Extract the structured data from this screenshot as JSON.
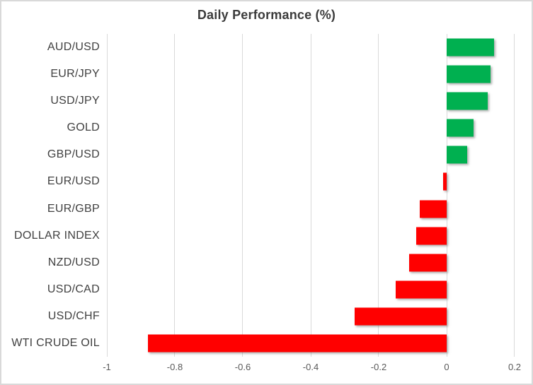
{
  "chart_data": {
    "type": "bar",
    "orientation": "horizontal",
    "title": "Daily Performance (%)",
    "categories": [
      "AUD/USD",
      "EUR/JPY",
      "USD/JPY",
      "GOLD",
      "GBP/USD",
      "EUR/USD",
      "EUR/GBP",
      "DOLLAR INDEX",
      "NZD/USD",
      "USD/CAD",
      "USD/CHF",
      "WTI CRUDE OIL"
    ],
    "values": [
      0.14,
      0.13,
      0.12,
      0.08,
      0.06,
      -0.01,
      -0.08,
      -0.09,
      -0.11,
      -0.15,
      -0.27,
      -0.88
    ],
    "xlim": [
      -1,
      0.2
    ],
    "x_ticks": [
      -1,
      -0.8,
      -0.6,
      -0.4,
      -0.2,
      0,
      0.2
    ],
    "x_tick_labels": [
      "-1",
      "-0.8",
      "-0.6",
      "-0.4",
      "-0.2",
      "0",
      "0.2"
    ],
    "grid": true,
    "legend": "none",
    "colors": {
      "positive": "#00B050",
      "negative": "#FF0000",
      "gridline": "#D9D9D9",
      "title_text": "#3B3B3B",
      "category_text": "#404040",
      "tick_text": "#595959",
      "chart_border": "#D9D9D9",
      "background": "#FFFFFF"
    }
  }
}
